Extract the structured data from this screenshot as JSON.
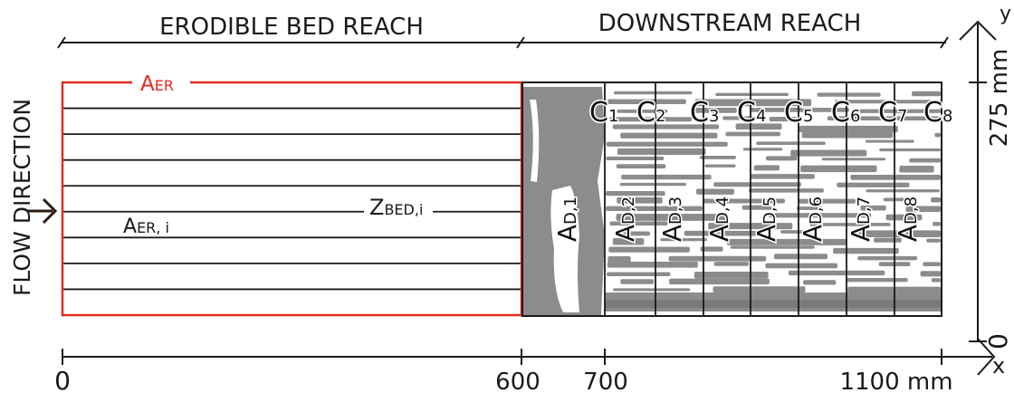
{
  "reach_labels": {
    "erodible": "ERODIBLE BED REACH",
    "downstream": "DOWNSTREAM REACH"
  },
  "flow_label": "FLOW DIRECTION",
  "erodible_bed": {
    "area_label": "A",
    "area_sub": "ER",
    "strip_label": "A",
    "strip_sub": "ER, i",
    "z_label": "Z",
    "z_sub": "BED,i",
    "accent_color": "#e32b1f"
  },
  "downstream_cells": {
    "area_labels": [
      "A",
      "A",
      "A",
      "A",
      "A",
      "A",
      "A",
      "A"
    ],
    "area_subs": [
      "D,1",
      "D,2",
      "D,3",
      "D,4",
      "D,5",
      "D,6",
      "D,7",
      "D,8"
    ],
    "cross_labels": [
      "C",
      "C",
      "C",
      "C",
      "C",
      "C",
      "C",
      "C"
    ],
    "cross_subs": [
      "1",
      "2",
      "3",
      "4",
      "5",
      "6",
      "7",
      "8"
    ],
    "fill_color": "#8c8c8c"
  },
  "x_axis": {
    "tick_labels": [
      "0",
      "600",
      "700",
      "1100 mm"
    ],
    "axis_letter": "x"
  },
  "y_axis": {
    "tick_labels": [
      "0",
      "275 mm"
    ],
    "axis_letter": "y"
  }
}
